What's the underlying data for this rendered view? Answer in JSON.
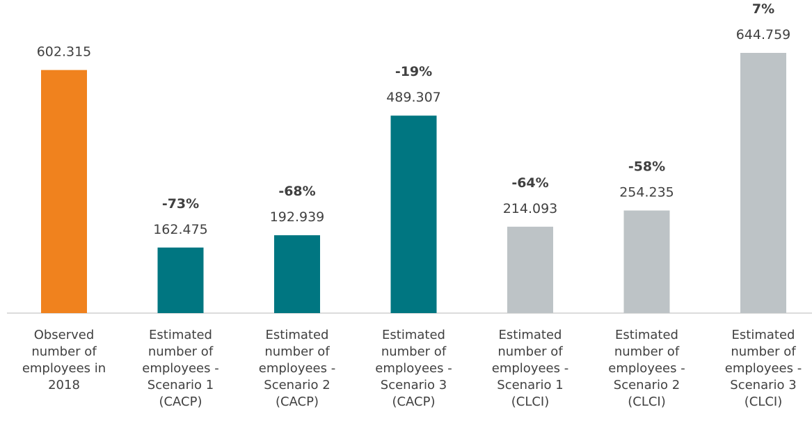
{
  "chart_data": {
    "type": "bar",
    "categories": [
      "Observed number of employees in 2018",
      "Estimated number of employees - Scenario 1 (CACP)",
      "Estimated number of employees - Scenario 2 (CACP)",
      "Estimated number of employees - Scenario 3 (CACP)",
      "Estimated number of employees - Scenario 1 (CLCI)",
      "Estimated number of employees - Scenario 2 (CLCI)",
      "Estimated number of employees - Scenario 3 (CLCI)"
    ],
    "values": [
      602.315,
      162.475,
      192.939,
      489.307,
      214.093,
      254.235,
      644.759
    ],
    "change_labels": [
      null,
      "-73%",
      "-68%",
      "-19%",
      "-64%",
      "-58%",
      "7%"
    ],
    "colors": [
      "#f0821e",
      "#007681",
      "#007681",
      "#007681",
      "#bdc3c6",
      "#bdc3c6",
      "#bdc3c6"
    ]
  }
}
